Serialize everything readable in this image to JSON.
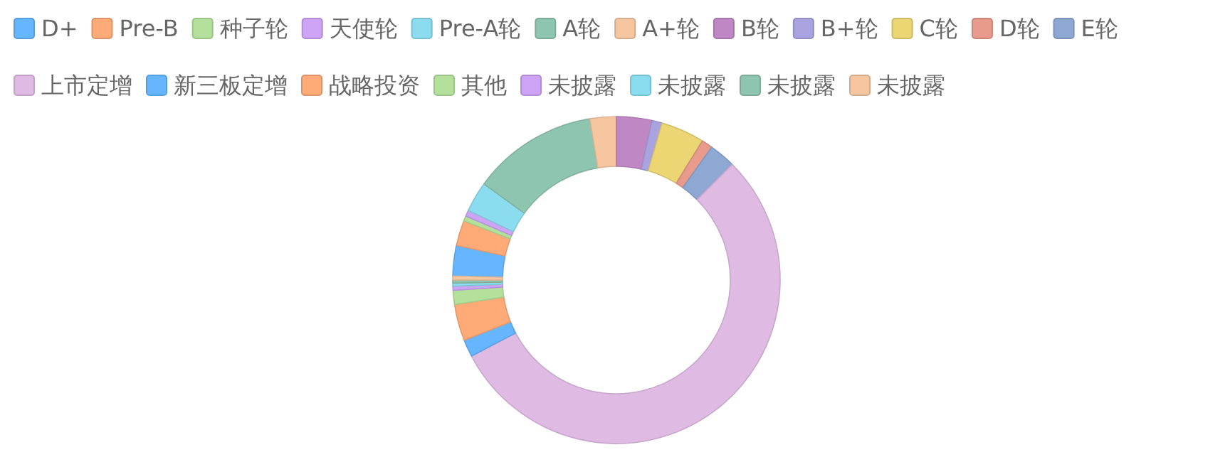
{
  "chart_data": {
    "type": "donut",
    "legend": "top left",
    "categories": [
      "D+",
      "Pre-B",
      "种子轮",
      "天使轮",
      "Pre-A轮",
      "A轮",
      "A+轮",
      "B轮",
      "B+轮",
      "C轮",
      "D轮",
      "E轮",
      "上市定增",
      "新三板定增",
      "战略投资",
      "其他",
      "未披露",
      "未披露",
      "未披露",
      "未披露"
    ],
    "values": [
      3,
      2.5,
      0.5,
      0.6,
      3,
      12.4,
      2.6,
      3.5,
      1,
      4.3,
      1.1,
      2.6,
      54.8,
      1.7,
      3.6,
      1.4,
      0.4,
      0.3,
      0.3,
      0.4
    ],
    "colors": [
      "#66b5ff",
      "#ffaa77",
      "#b3e19b",
      "#cca3f5",
      "#8cdcef",
      "#8ec5b1",
      "#f5c6a0",
      "#bf88c4",
      "#a9a3e0",
      "#ecd674",
      "#e89a8c",
      "#8ea8d4",
      "#dfbae3",
      "#66b5ff",
      "#ffaa77",
      "#b3e19b",
      "#cca3f5",
      "#8cdcef",
      "#8ec5b1",
      "#f5c6a0"
    ]
  }
}
